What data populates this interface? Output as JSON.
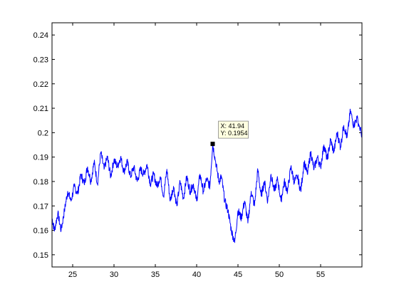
{
  "chart_data": {
    "type": "line",
    "title": "",
    "xlabel": "",
    "ylabel": "",
    "xlim": [
      22.5,
      60
    ],
    "ylim": [
      0.145,
      0.245
    ],
    "xticks": [
      25,
      30,
      35,
      40,
      45,
      50,
      55
    ],
    "xtick_labels": [
      "25",
      "30",
      "35",
      "40",
      "45",
      "50",
      "55"
    ],
    "yticks": [
      0.15,
      0.16,
      0.17,
      0.18,
      0.19,
      0.2,
      0.21,
      0.22,
      0.23,
      0.24
    ],
    "ytick_labels": [
      "0.15",
      "0.16",
      "0.17",
      "0.18",
      "0.19",
      "0.2",
      "0.21",
      "0.22",
      "0.23",
      "0.24"
    ],
    "grid": false,
    "line_color": "#0000ff",
    "series": [
      {
        "values_x": [
          22.5,
          22.8,
          23.2,
          23.6,
          24.0,
          24.4,
          24.8,
          25.2,
          25.6,
          26.0,
          26.4,
          26.8,
          27.2,
          27.6,
          28.0,
          28.4,
          28.8,
          29.2,
          29.6,
          30.0,
          30.4,
          30.8,
          31.2,
          31.6,
          32.0,
          32.4,
          32.8,
          33.2,
          33.6,
          34.0,
          34.4,
          34.8,
          35.2,
          35.6,
          36.0,
          36.4,
          36.8,
          37.2,
          37.6,
          38.0,
          38.4,
          38.8,
          39.2,
          39.6,
          40.0,
          40.4,
          40.8,
          41.2,
          41.6,
          41.94,
          42.3,
          42.7,
          43.0,
          43.4,
          43.8,
          44.2,
          44.6,
          45.0,
          45.4,
          45.8,
          46.2,
          46.6,
          47.0,
          47.4,
          47.8,
          48.2,
          48.6,
          49.0,
          49.4,
          49.8,
          50.2,
          50.6,
          51.0,
          51.4,
          51.8,
          52.2,
          52.6,
          53.0,
          53.4,
          53.8,
          54.2,
          54.6,
          55.0,
          55.4,
          55.8,
          56.2,
          56.6,
          57.0,
          57.4,
          57.8,
          58.2,
          58.6,
          59.0,
          59.4,
          60.0
        ],
        "values_y": [
          0.165,
          0.16,
          0.167,
          0.16,
          0.168,
          0.176,
          0.172,
          0.178,
          0.175,
          0.183,
          0.179,
          0.186,
          0.18,
          0.188,
          0.179,
          0.192,
          0.185,
          0.19,
          0.182,
          0.189,
          0.186,
          0.19,
          0.184,
          0.188,
          0.182,
          0.186,
          0.18,
          0.185,
          0.183,
          0.187,
          0.179,
          0.183,
          0.178,
          0.182,
          0.174,
          0.185,
          0.172,
          0.178,
          0.17,
          0.18,
          0.173,
          0.182,
          0.176,
          0.179,
          0.172,
          0.183,
          0.176,
          0.181,
          0.178,
          0.1954,
          0.188,
          0.18,
          0.182,
          0.172,
          0.168,
          0.16,
          0.155,
          0.168,
          0.165,
          0.172,
          0.163,
          0.176,
          0.17,
          0.185,
          0.174,
          0.18,
          0.172,
          0.183,
          0.176,
          0.181,
          0.172,
          0.18,
          0.176,
          0.186,
          0.18,
          0.182,
          0.176,
          0.188,
          0.183,
          0.192,
          0.185,
          0.19,
          0.186,
          0.195,
          0.189,
          0.197,
          0.192,
          0.2,
          0.194,
          0.203,
          0.198,
          0.209,
          0.203,
          0.206,
          0.199
        ]
      }
    ],
    "datatip": {
      "x": 41.94,
      "y": 0.1954,
      "label_x": "X: 41.94",
      "label_y": "Y: 0.1954"
    }
  }
}
